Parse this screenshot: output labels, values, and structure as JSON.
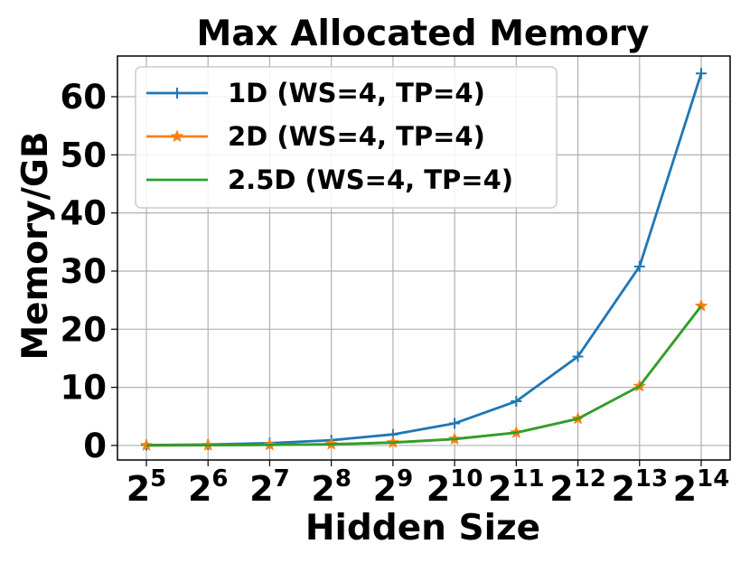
{
  "chart_data": {
    "type": "line",
    "title": "Max Allocated Memory",
    "xlabel": "Hidden Size",
    "ylabel": "Memory/GB",
    "x_base": "2",
    "x_exponents": [
      "5",
      "6",
      "7",
      "8",
      "9",
      "10",
      "11",
      "12",
      "13",
      "14"
    ],
    "y_ticks": [
      0,
      10,
      20,
      30,
      40,
      50,
      60
    ],
    "ylim": [
      -2.5,
      67
    ],
    "grid": true,
    "legend_position": "top-left",
    "series": [
      {
        "name": "1D (WS=4, TP=4)",
        "color": "#1f77b4",
        "marker": "plus",
        "values": [
          0.06,
          0.15,
          0.4,
          0.9,
          1.9,
          3.8,
          7.6,
          15.3,
          30.8,
          64.0
        ]
      },
      {
        "name": "2D (WS=4, TP=4)",
        "color": "#ff7f0e",
        "marker": "star",
        "values": [
          0.02,
          0.05,
          0.1,
          0.2,
          0.5,
          1.1,
          2.2,
          4.6,
          10.2,
          24.0
        ]
      },
      {
        "name": "2.5D (WS=4, TP=4)",
        "color": "#2ca02c",
        "marker": "none",
        "values": [
          0.02,
          0.05,
          0.1,
          0.2,
          0.5,
          1.1,
          2.2,
          4.6,
          10.2,
          24.0
        ]
      }
    ]
  }
}
